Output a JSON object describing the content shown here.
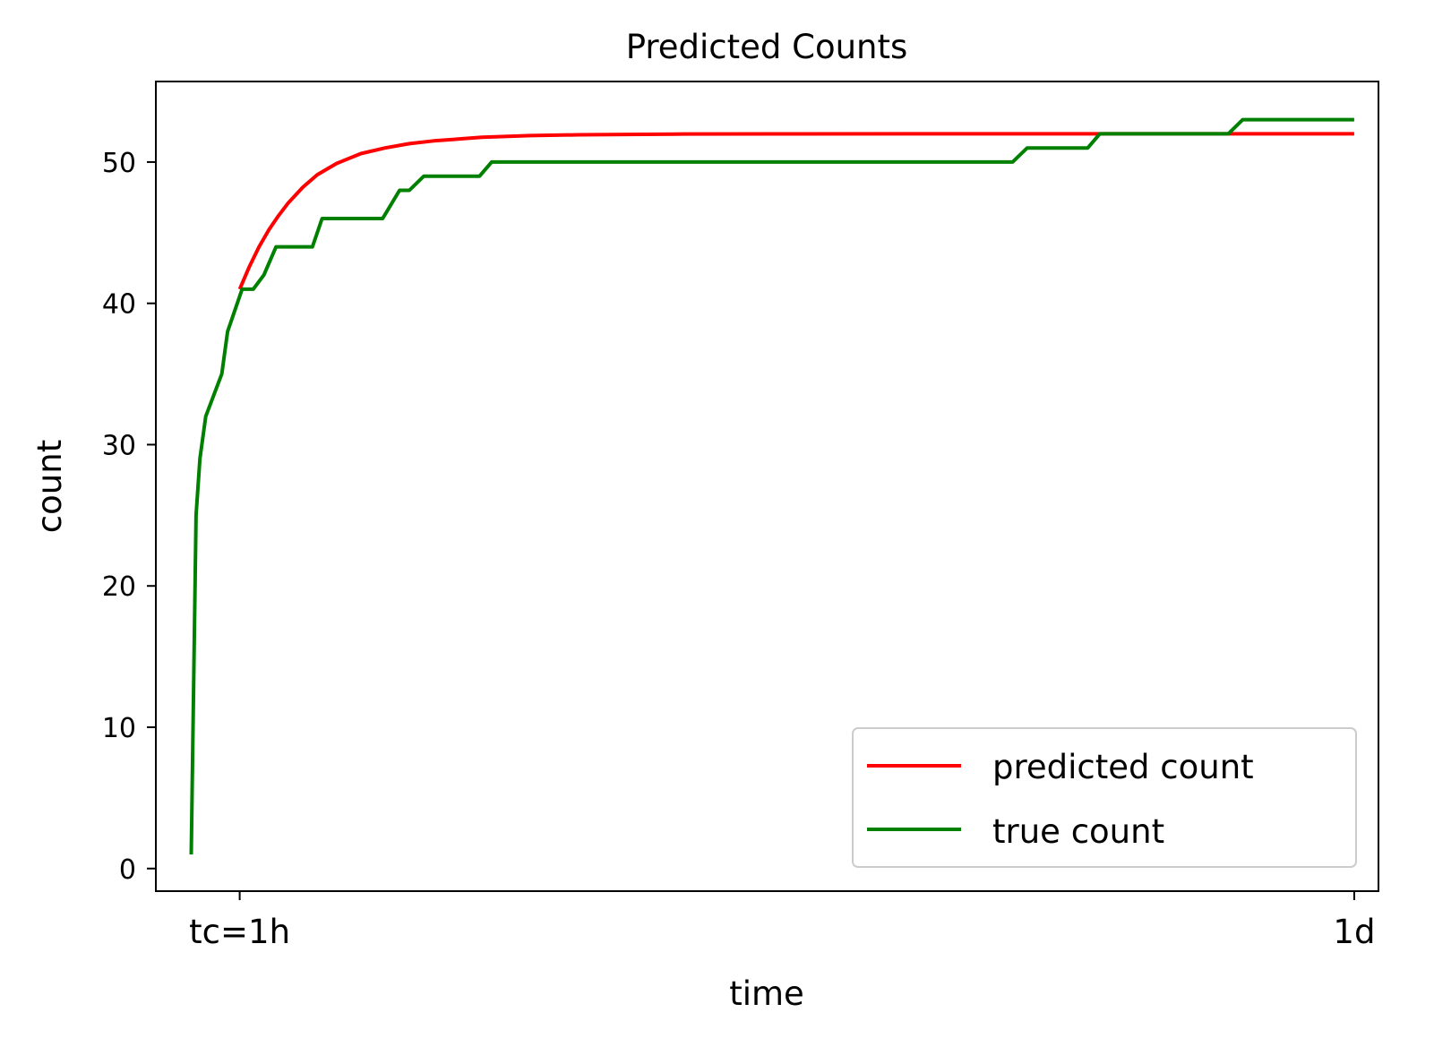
{
  "chart_data": {
    "type": "line",
    "title": "Predicted Counts",
    "xlabel": "time",
    "ylabel": "count",
    "xlim": [
      -0.73,
      24.5
    ],
    "ylim": [
      -1.6,
      55.7
    ],
    "x_ticks": [
      {
        "value": 1,
        "label": "tc=1h"
      },
      {
        "value": 24,
        "label": "1d"
      }
    ],
    "y_ticks": [
      0,
      10,
      20,
      30,
      40,
      50
    ],
    "grid": false,
    "legend_position": "lower right",
    "series": [
      {
        "name": "predicted count",
        "color": "#ff0000",
        "x": [
          1.0,
          1.2,
          1.4,
          1.6,
          1.8,
          2.0,
          2.3,
          2.6,
          3.0,
          3.5,
          4.0,
          4.5,
          5.0,
          6.0,
          7.0,
          8.0,
          10.0,
          12.0,
          15.0,
          18.0,
          21.0,
          24.0
        ],
        "y": [
          41.0,
          42.6,
          44.0,
          45.2,
          46.2,
          47.1,
          48.2,
          49.1,
          49.9,
          50.6,
          51.0,
          51.3,
          51.5,
          51.75,
          51.87,
          51.93,
          51.98,
          51.99,
          52.0,
          52.0,
          52.0,
          52.0
        ]
      },
      {
        "name": "true count",
        "color": "#008000",
        "x": [
          0.0,
          0.1,
          0.18,
          0.3,
          0.63,
          0.75,
          0.95,
          1.05,
          1.28,
          1.5,
          1.75,
          2.5,
          2.7,
          3.95,
          4.3,
          4.5,
          4.8,
          5.95,
          6.2,
          16.95,
          17.25,
          18.5,
          18.75,
          21.4,
          21.7,
          24.0
        ],
        "y": [
          1,
          25,
          29,
          32,
          35,
          38,
          40,
          41,
          41,
          42,
          44,
          44,
          46,
          46,
          48,
          48,
          49,
          49,
          50,
          50,
          51,
          51,
          52,
          52,
          53,
          53
        ]
      }
    ]
  }
}
